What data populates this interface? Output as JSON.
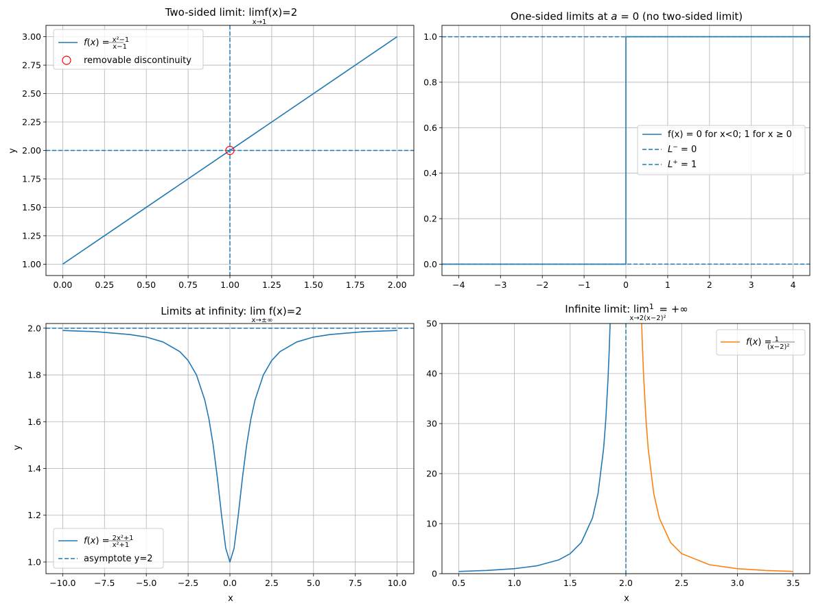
{
  "colors": {
    "blue": "#1f77b4",
    "orange": "#ff7f0e",
    "red": "#ff0000",
    "grid": "#b0b0b0"
  },
  "chart_data": [
    {
      "id": "p1",
      "type": "line",
      "title": {
        "pre": "Two-sided limit: ",
        "lim": "lim",
        "sub": "x→1",
        "post": "f(x)=2"
      },
      "xlabel": "",
      "ylabel": "y",
      "xlim": [
        -0.1,
        2.1
      ],
      "ylim": [
        0.9,
        3.1
      ],
      "xticks": [
        0,
        0.25,
        0.5,
        0.75,
        1,
        1.25,
        1.5,
        1.75,
        2
      ],
      "xticklabels": [
        "0.00",
        "0.25",
        "0.50",
        "0.75",
        "1.00",
        "1.25",
        "1.50",
        "1.75",
        "2.00"
      ],
      "yticks": [
        1,
        1.25,
        1.5,
        1.75,
        2,
        2.25,
        2.5,
        2.75,
        3
      ],
      "yticklabels": [
        "1.00",
        "1.25",
        "1.50",
        "1.75",
        "2.00",
        "2.25",
        "2.50",
        "2.75",
        "3.00"
      ],
      "grid": true,
      "legend": "upper-left",
      "series": [
        {
          "name": "f(x) = (x²−1)/(x−1)",
          "kind": "line",
          "color": "#1f77b4",
          "x": [
            0,
            2
          ],
          "y": [
            1,
            3
          ]
        },
        {
          "name": "removable discontinuity",
          "kind": "hollow-marker",
          "color": "#ff0000",
          "x": [
            1
          ],
          "y": [
            2
          ]
        }
      ],
      "hlines": [
        2
      ],
      "vlines": [
        1
      ]
    },
    {
      "id": "p2",
      "type": "line",
      "title": {
        "text": "One-sided limits at a = 0 (no two-sided limit)"
      },
      "xlabel": "",
      "ylabel": "",
      "xlim": [
        -4.4,
        4.4
      ],
      "ylim": [
        -0.05,
        1.05
      ],
      "xticks": [
        -4,
        -3,
        -2,
        -1,
        0,
        1,
        2,
        3,
        4
      ],
      "xticklabels": [
        "−4",
        "−3",
        "−2",
        "−1",
        "0",
        "1",
        "2",
        "3",
        "4"
      ],
      "yticks": [
        0,
        0.2,
        0.4,
        0.6,
        0.8,
        1.0
      ],
      "yticklabels": [
        "0.0",
        "0.2",
        "0.4",
        "0.6",
        "0.8",
        "1.0"
      ],
      "grid": true,
      "legend": "center-right",
      "series": [
        {
          "name": "f(x) = 0 for x<0; 1 for x ≥ 0",
          "kind": "line",
          "color": "#1f77b4",
          "x": [
            -4.4,
            0,
            0,
            4.4
          ],
          "y": [
            0,
            0,
            1,
            1
          ]
        },
        {
          "name": "L⁻ = 0",
          "kind": "hline",
          "color": "#1f77b4",
          "y": 0
        },
        {
          "name": "L⁺ = 1",
          "kind": "hline",
          "color": "#1f77b4",
          "y": 1
        }
      ],
      "hlines": [
        0,
        1
      ],
      "vlines": []
    },
    {
      "id": "p3",
      "type": "line",
      "title": {
        "pre": "Limits at infinity: ",
        "lim": "lim",
        "sub": "x→±∞",
        "post": " f(x)=2"
      },
      "xlabel": "x",
      "ylabel": "y",
      "xlim": [
        -11,
        11
      ],
      "ylim": [
        0.95,
        2.02
      ],
      "xticks": [
        -10,
        -7.5,
        -5,
        -2.5,
        0,
        2.5,
        5,
        7.5,
        10
      ],
      "xticklabels": [
        "−10.0",
        "−7.5",
        "−5.0",
        "−2.5",
        "0.0",
        "2.5",
        "5.0",
        "7.5",
        "10.0"
      ],
      "yticks": [
        1.0,
        1.2,
        1.4,
        1.6,
        1.8,
        2.0
      ],
      "yticklabels": [
        "1.0",
        "1.2",
        "1.4",
        "1.6",
        "1.8",
        "2.0"
      ],
      "grid": true,
      "legend": "lower-left",
      "series": [
        {
          "name": "f(x) = (2x²+1)/(x²+1)",
          "kind": "line",
          "color": "#1f77b4",
          "x": [
            -10,
            -8,
            -6,
            -5,
            -4,
            -3,
            -2.5,
            -2,
            -1.5,
            -1.25,
            -1,
            -0.75,
            -0.5,
            -0.25,
            0,
            0.25,
            0.5,
            0.75,
            1,
            1.25,
            1.5,
            2,
            2.5,
            3,
            4,
            5,
            6,
            8,
            10
          ],
          "y": [
            1.99,
            1.985,
            1.973,
            1.962,
            1.941,
            1.9,
            1.862,
            1.8,
            1.692,
            1.61,
            1.5,
            1.36,
            1.2,
            1.059,
            1.0,
            1.059,
            1.2,
            1.36,
            1.5,
            1.61,
            1.692,
            1.8,
            1.862,
            1.9,
            1.941,
            1.962,
            1.973,
            1.985,
            1.99
          ]
        },
        {
          "name": "asymptote y=2",
          "kind": "hline",
          "color": "#1f77b4",
          "y": 2
        }
      ],
      "hlines": [
        2
      ],
      "vlines": []
    },
    {
      "id": "p4",
      "type": "line",
      "title": {
        "pre": "Infinite limit: ",
        "lim": "lim",
        "sub": "x→2",
        "post": "1/(x−2)² = +∞"
      },
      "xlabel": "x",
      "ylabel": "",
      "xlim": [
        0.35,
        3.65
      ],
      "ylim": [
        0,
        50
      ],
      "xticks": [
        0.5,
        1.0,
        1.5,
        2.0,
        2.5,
        3.0,
        3.5
      ],
      "xticklabels": [
        "0.5",
        "1.0",
        "1.5",
        "2.0",
        "2.5",
        "3.0",
        "3.5"
      ],
      "yticks": [
        0,
        10,
        20,
        30,
        40,
        50
      ],
      "yticklabels": [
        "0",
        "10",
        "20",
        "30",
        "40",
        "50"
      ],
      "grid": true,
      "legend": "upper-right",
      "series": [
        {
          "name": "",
          "kind": "line",
          "color": "#1f77b4",
          "x": [
            0.5,
            0.75,
            1.0,
            1.2,
            1.4,
            1.5,
            1.6,
            1.7,
            1.75,
            1.8,
            1.82,
            1.84,
            1.85,
            1.86
          ],
          "y": [
            0.444,
            0.64,
            1.0,
            1.5625,
            2.778,
            4.0,
            6.25,
            11.11,
            16.0,
            25.0,
            30.86,
            39.06,
            44.44,
            51.02
          ]
        },
        {
          "name": "f(x) = 1/(x−2)²",
          "kind": "line",
          "color": "#ff7f0e",
          "x": [
            2.14,
            2.15,
            2.16,
            2.18,
            2.2,
            2.25,
            2.3,
            2.4,
            2.5,
            2.75,
            3.0,
            3.25,
            3.5
          ],
          "y": [
            51.02,
            44.44,
            39.06,
            30.86,
            25.0,
            16.0,
            11.11,
            6.25,
            4.0,
            1.778,
            1.0,
            0.64,
            0.444
          ]
        }
      ],
      "hlines": [],
      "vlines": [
        2
      ]
    }
  ]
}
